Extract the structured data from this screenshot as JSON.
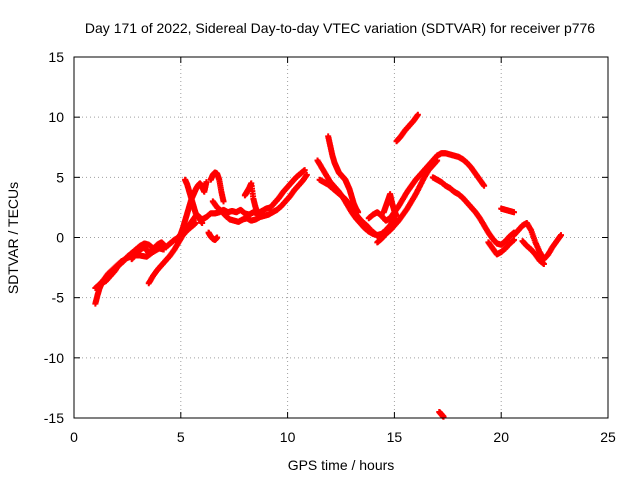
{
  "chart_data": {
    "type": "scatter",
    "title": "Day 171 of 2022, Sidereal Day-to-day VTEC variation (SDTVAR) for receiver p776",
    "xlabel": "GPS time / hours",
    "ylabel": "SDTVAR / TECUs",
    "xlim": [
      0,
      25
    ],
    "ylim": [
      -15,
      15
    ],
    "xticks": [
      0,
      5,
      10,
      15,
      20,
      25
    ],
    "yticks": [
      -15,
      -10,
      -5,
      0,
      5,
      10,
      15
    ],
    "grid": true,
    "marker": "+",
    "color": "#ff0000",
    "series": [
      {
        "name": "tr1",
        "x": [
          1.0,
          1.1,
          1.2,
          1.3,
          1.5,
          1.7,
          1.9,
          2.1,
          2.3,
          2.5,
          2.7,
          2.9,
          3.1,
          3.3,
          3.5,
          3.7
        ],
        "y": [
          -5.5,
          -4.8,
          -4.2,
          -3.8,
          -3.6,
          -3.2,
          -2.8,
          -2.3,
          -2.0,
          -1.6,
          -1.3,
          -1.0,
          -0.7,
          -0.5,
          -0.6,
          -0.9
        ]
      },
      {
        "name": "tr2",
        "x": [
          1.0,
          1.2,
          1.4,
          1.6,
          1.9,
          2.2,
          2.5,
          2.8,
          3.1,
          3.4,
          3.7,
          4.0,
          4.2
        ],
        "y": [
          -4.2,
          -3.9,
          -3.5,
          -3.0,
          -2.5,
          -2.0,
          -1.7,
          -1.5,
          -1.5,
          -1.6,
          -1.2,
          -0.9,
          -1.0
        ]
      },
      {
        "name": "tr3",
        "x": [
          2.7,
          2.9,
          3.1,
          3.3,
          3.5,
          3.7,
          3.9,
          4.1,
          4.3,
          4.5,
          4.7,
          4.9,
          5.1,
          5.3,
          5.5,
          5.7
        ],
        "y": [
          -1.8,
          -1.4,
          -1.0,
          -0.8,
          -1.3,
          -1.0,
          -0.6,
          -0.4,
          -0.8,
          -0.5,
          -0.2,
          0.0,
          0.4,
          0.8,
          1.3,
          1.8
        ]
      },
      {
        "name": "tr4",
        "x": [
          3.5,
          3.7,
          3.9,
          4.1,
          4.3,
          4.5,
          4.7,
          4.9,
          5.1,
          5.3,
          5.5,
          5.7
        ],
        "y": [
          -3.8,
          -3.2,
          -2.7,
          -2.3,
          -1.9,
          -1.5,
          -1.0,
          -0.4,
          0.2,
          0.6,
          0.9,
          1.2
        ]
      },
      {
        "name": "tr5",
        "x": [
          4.8,
          5.0,
          5.1,
          5.2,
          5.3,
          5.4,
          5.5,
          5.6,
          5.7,
          5.8,
          5.9,
          6.0,
          6.1,
          6.2
        ],
        "y": [
          -0.2,
          0.3,
          0.8,
          1.4,
          2.0,
          2.6,
          3.2,
          3.6,
          4.0,
          4.3,
          4.5,
          4.2,
          3.8,
          4.6
        ]
      },
      {
        "name": "tr6",
        "x": [
          5.2,
          5.3,
          5.4,
          5.5,
          5.6,
          5.7,
          5.8,
          5.9,
          6.0
        ],
        "y": [
          4.8,
          4.4,
          3.8,
          3.2,
          2.6,
          2.0,
          1.8,
          1.5,
          1.2
        ]
      },
      {
        "name": "tr7",
        "x": [
          5.8,
          6.0,
          6.2,
          6.4,
          6.6,
          6.8,
          7.0,
          7.2,
          7.4,
          7.6,
          7.8,
          8.0,
          8.2,
          8.4,
          8.6,
          8.8,
          9.0,
          9.2,
          9.4,
          9.6,
          9.8,
          10.0,
          10.2,
          10.4,
          10.6,
          10.8
        ],
        "y": [
          1.8,
          1.5,
          1.7,
          2.0,
          2.0,
          2.1,
          2.3,
          2.1,
          2.2,
          2.1,
          2.3,
          2.0,
          1.9,
          2.1,
          2.0,
          2.2,
          2.4,
          2.5,
          2.9,
          3.3,
          3.8,
          4.2,
          4.6,
          5.0,
          5.3,
          5.6
        ]
      },
      {
        "name": "tr8",
        "x": [
          6.5,
          6.7,
          6.9,
          7.1,
          7.3,
          7.5,
          7.7,
          7.9,
          8.1,
          8.3,
          8.5,
          8.7,
          8.9,
          9.1,
          9.3,
          9.5,
          9.7,
          9.9,
          10.1,
          10.3,
          10.5,
          10.7,
          10.9
        ],
        "y": [
          3.0,
          2.5,
          2.2,
          1.8,
          1.5,
          1.4,
          1.3,
          1.5,
          1.6,
          1.4,
          1.5,
          1.7,
          1.8,
          1.9,
          2.1,
          2.3,
          2.6,
          3.0,
          3.4,
          3.9,
          4.3,
          4.7,
          5.2
        ]
      },
      {
        "name": "tr9",
        "x": [
          6.4,
          6.5,
          6.6,
          6.7,
          6.8,
          6.9,
          7.0
        ],
        "y": [
          4.8,
          5.2,
          5.4,
          5.3,
          4.8,
          3.8,
          3.0
        ]
      },
      {
        "name": "tr10",
        "x": [
          6.3,
          6.4,
          6.5,
          6.6,
          6.7
        ],
        "y": [
          0.4,
          0.1,
          -0.1,
          -0.2,
          0.0
        ]
      },
      {
        "name": "tr11",
        "x": [
          8.0,
          8.1,
          8.2,
          8.3,
          8.4,
          8.5,
          8.6
        ],
        "y": [
          3.5,
          3.8,
          4.1,
          4.5,
          3.2,
          2.5,
          2.0
        ]
      },
      {
        "name": "tr12",
        "x": [
          11.9,
          12.0,
          12.1,
          12.2,
          12.3,
          12.4,
          12.5,
          12.6,
          12.7,
          12.8,
          12.9,
          13.0,
          13.1,
          13.2,
          13.3
        ],
        "y": [
          8.4,
          7.6,
          6.8,
          6.2,
          5.8,
          5.4,
          5.2,
          5.0,
          4.8,
          4.4,
          4.0,
          3.4,
          2.8,
          2.4,
          2.1
        ]
      },
      {
        "name": "tr13",
        "x": [
          11.4,
          11.6,
          11.8,
          12.0,
          12.2,
          12.4,
          12.6,
          12.8,
          13.0,
          13.2,
          13.4,
          13.6,
          13.8,
          14.0,
          14.2,
          14.4,
          14.6,
          14.8,
          15.0
        ],
        "y": [
          6.4,
          5.8,
          5.2,
          4.6,
          4.2,
          3.8,
          3.3,
          2.7,
          2.1,
          1.6,
          1.2,
          0.8,
          0.5,
          0.3,
          0.2,
          0.3,
          0.6,
          1.0,
          1.6
        ]
      },
      {
        "name": "tr14",
        "x": [
          11.5,
          11.7,
          11.9,
          12.1,
          12.3,
          12.5,
          12.7,
          12.9,
          13.1,
          13.3,
          13.5,
          13.7,
          13.9,
          14.1,
          14.3
        ],
        "y": [
          4.8,
          4.6,
          4.4,
          4.1,
          3.8,
          3.5,
          3.2,
          2.7,
          2.2,
          1.7,
          1.3,
          1.0,
          0.6,
          0.3,
          0.0
        ]
      },
      {
        "name": "tr15",
        "x": [
          13.8,
          14.0,
          14.2,
          14.4,
          14.6,
          14.8,
          15.0,
          15.2,
          15.4,
          15.6,
          15.8,
          16.0,
          16.2,
          16.4,
          16.6,
          16.8,
          17.0,
          17.2,
          17.4,
          17.6,
          17.8,
          18.0,
          18.2,
          18.4,
          18.6,
          18.8,
          19.0,
          19.2
        ],
        "y": [
          1.6,
          1.9,
          2.1,
          1.8,
          1.4,
          1.6,
          2.1,
          2.6,
          3.2,
          3.8,
          4.3,
          4.8,
          5.2,
          5.6,
          6.0,
          6.4,
          6.8,
          7.0,
          7.0,
          6.9,
          6.8,
          6.7,
          6.5,
          6.2,
          5.8,
          5.3,
          4.8,
          4.3
        ]
      },
      {
        "name": "tr16",
        "x": [
          14.2,
          14.4,
          14.6,
          14.8,
          15.0,
          15.2,
          15.4,
          15.6,
          15.8,
          16.0,
          16.2,
          16.4,
          16.6,
          16.8,
          17.0
        ],
        "y": [
          -0.4,
          -0.1,
          0.3,
          0.6,
          1.0,
          1.4,
          1.9,
          2.4,
          3.0,
          3.6,
          4.3,
          5.0,
          5.6,
          6.0,
          6.4
        ]
      },
      {
        "name": "tr17",
        "x": [
          14.5,
          14.6,
          14.7,
          14.8,
          14.9,
          15.0,
          15.1
        ],
        "y": [
          2.1,
          2.6,
          3.1,
          3.6,
          2.8,
          2.2,
          1.8
        ]
      },
      {
        "name": "tr18",
        "x": [
          15.1,
          15.3,
          15.5,
          15.7,
          15.9,
          16.1
        ],
        "y": [
          8.0,
          8.4,
          8.9,
          9.3,
          9.7,
          10.2
        ]
      },
      {
        "name": "tr19",
        "x": [
          16.8,
          17.0,
          17.2,
          17.4,
          17.6,
          17.8,
          18.0,
          18.2,
          18.4,
          18.6,
          18.8,
          19.0,
          19.2,
          19.4,
          19.6,
          19.8,
          20.0,
          20.2,
          20.4,
          20.6
        ],
        "y": [
          5.0,
          4.8,
          4.6,
          4.3,
          4.1,
          3.8,
          3.6,
          3.3,
          2.9,
          2.5,
          2.1,
          1.6,
          1.0,
          0.4,
          -0.1,
          -0.5,
          -0.6,
          -0.3,
          0.1,
          0.4
        ]
      },
      {
        "name": "tr20",
        "x": [
          19.4,
          19.6,
          19.8,
          20.0,
          20.2,
          20.4,
          20.6
        ],
        "y": [
          -0.4,
          -0.9,
          -1.4,
          -1.2,
          -0.9,
          -0.5,
          -0.2
        ]
      },
      {
        "name": "tr21",
        "x": [
          20.0,
          20.2,
          20.4,
          20.6
        ],
        "y": [
          2.4,
          2.3,
          2.2,
          2.1
        ]
      },
      {
        "name": "tr22",
        "x": [
          20.6,
          20.8,
          21.0,
          21.2,
          21.4,
          21.6,
          21.8,
          22.0,
          22.2,
          22.4,
          22.6,
          22.8
        ],
        "y": [
          0.2,
          0.6,
          1.0,
          1.2,
          0.6,
          -0.4,
          -1.2,
          -1.8,
          -1.4,
          -0.8,
          -0.3,
          0.2
        ]
      },
      {
        "name": "tr23",
        "x": [
          21.0,
          21.2,
          21.4,
          21.6,
          21.8,
          22.0
        ],
        "y": [
          -0.3,
          -0.7,
          -1.0,
          -1.4,
          -1.9,
          -2.2
        ]
      },
      {
        "name": "tr24",
        "x": [
          17.1,
          17.2,
          17.3
        ],
        "y": [
          -14.5,
          -14.7,
          -14.9
        ]
      }
    ]
  }
}
